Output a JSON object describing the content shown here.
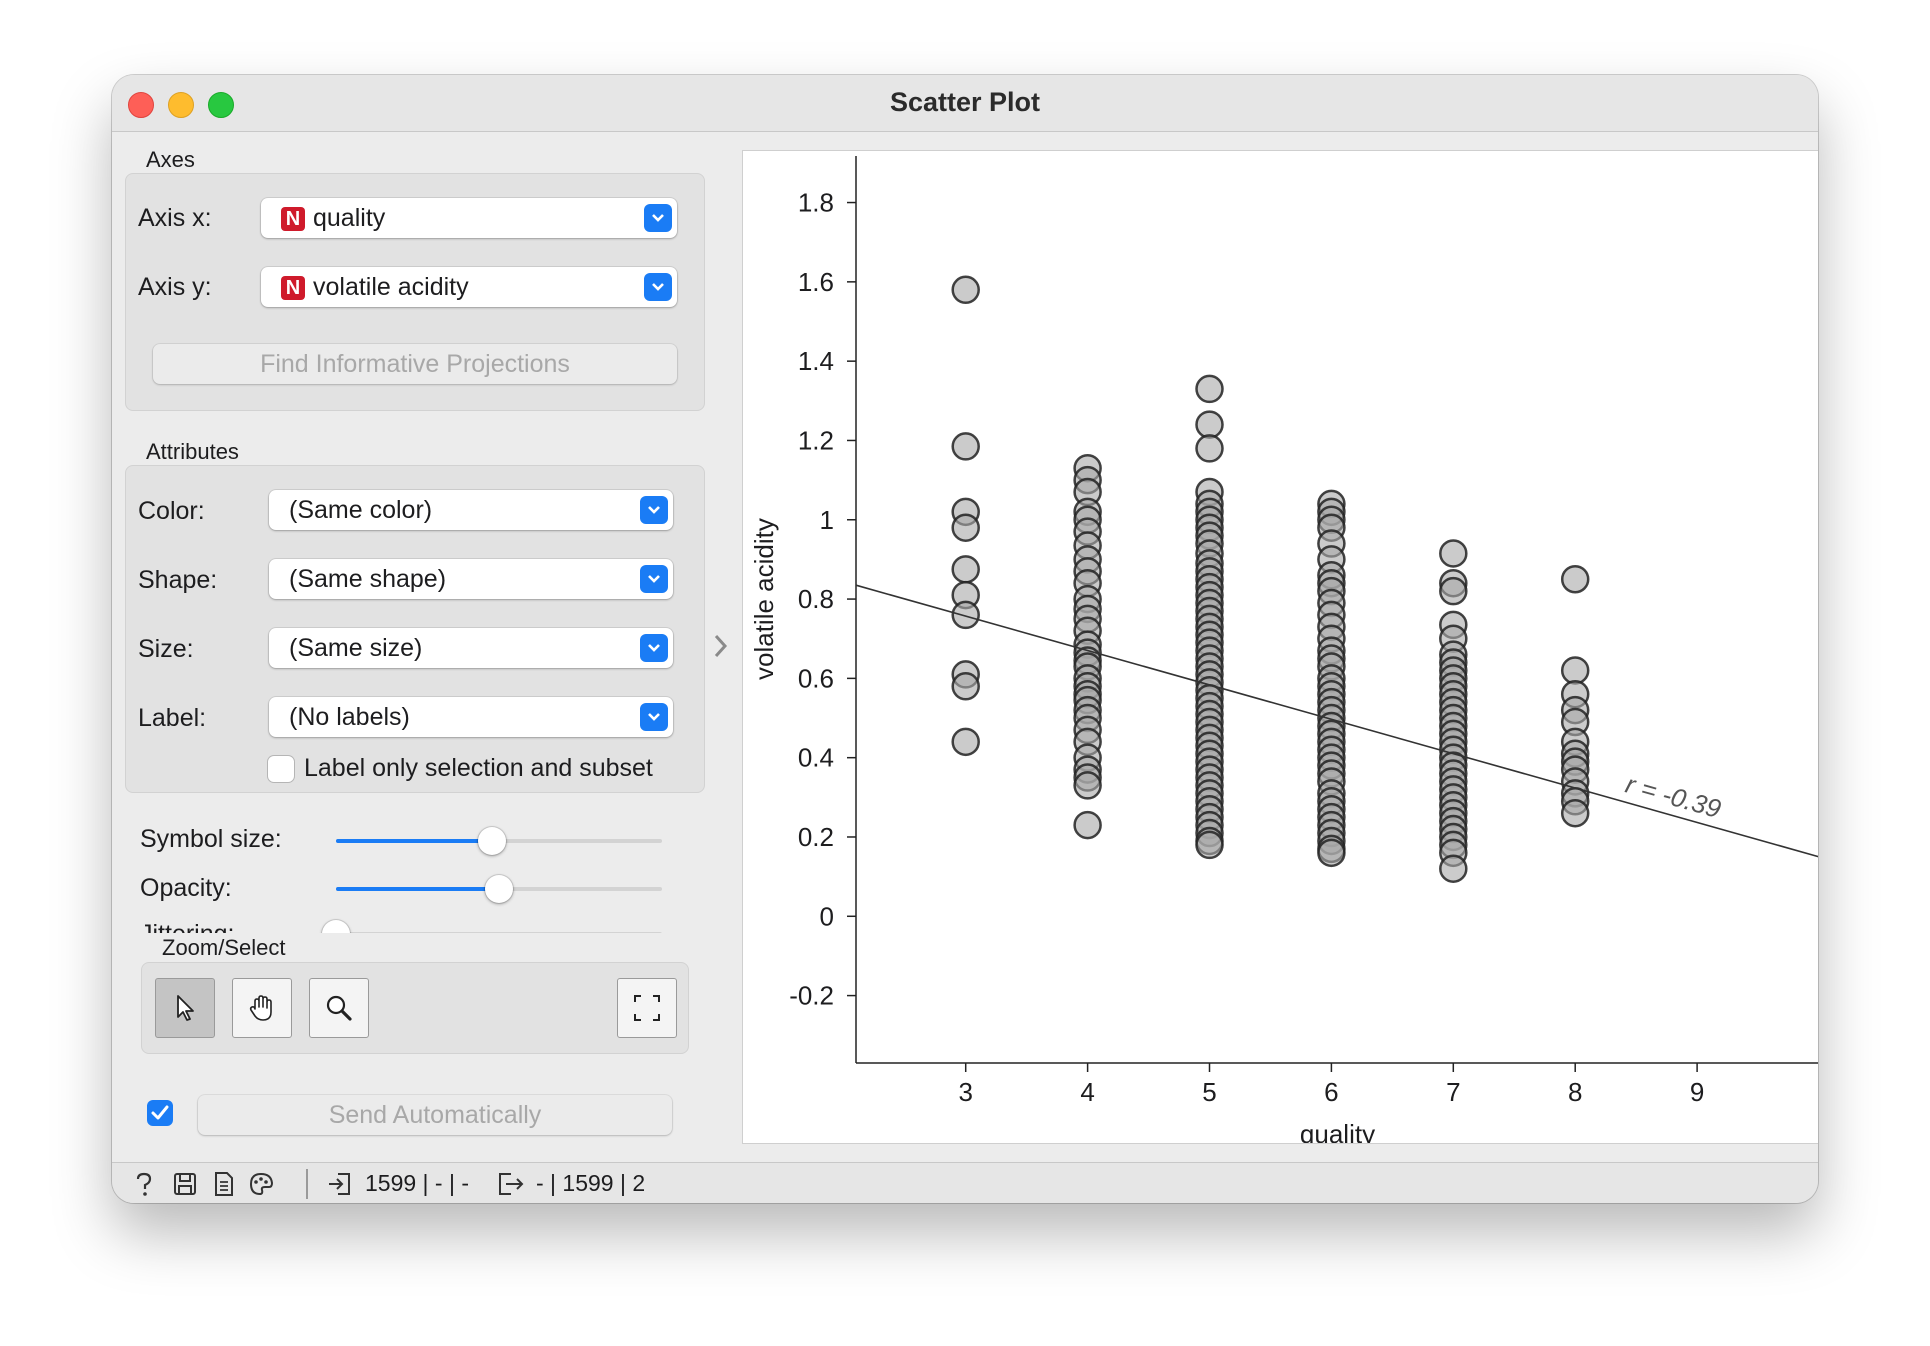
{
  "window": {
    "title": "Scatter Plot"
  },
  "axes_box": {
    "title": "Axes",
    "axis_x_label": "Axis x:",
    "axis_x_value": "quality",
    "axis_y_label": "Axis y:",
    "axis_y_value": "volatile acidity",
    "var_badge": "N",
    "find_projections": "Find Informative Projections"
  },
  "attributes_box": {
    "title": "Attributes",
    "color_label": "Color:",
    "color_value": "(Same color)",
    "shape_label": "Shape:",
    "shape_value": "(Same shape)",
    "size_label": "Size:",
    "size_value": "(Same size)",
    "label_label": "Label:",
    "label_value": "(No labels)",
    "label_only_selection": "Label only selection and subset",
    "label_only_selection_checked": false
  },
  "sliders": {
    "symbol_size_label": "Symbol size:",
    "symbol_size_level": 0.48,
    "opacity_label": "Opacity:",
    "opacity_level": 0.5,
    "jittering_label": "Jittering:",
    "jittering_level": 0.0
  },
  "zoom_select": {
    "title": "Zoom/Select",
    "active_tool": "select"
  },
  "send": {
    "label": "Send Automatically",
    "checked": true
  },
  "status": {
    "input_summary": "1599 | - | -",
    "output_summary": "- | 1599 | 2"
  },
  "chart_data": {
    "type": "scatter",
    "xlabel": "quality",
    "ylabel": "volatile acidity",
    "xlim": [
      2.1,
      10.0
    ],
    "ylim": [
      -0.37,
      1.93
    ],
    "xticks": [
      3,
      4,
      5,
      6,
      7,
      8,
      9
    ],
    "yticks": [
      -0.2,
      0,
      0.2,
      0.4,
      0.6,
      0.8,
      1,
      1.2,
      1.4,
      1.6,
      1.8
    ],
    "ytick_labels": [
      "-0.2",
      "0",
      "0.2",
      "0.4",
      "0.6",
      "0.8",
      "1",
      "1.2",
      "1.4",
      "1.6",
      "1.8"
    ],
    "grid": false,
    "regression": {
      "label": "r = -0.39",
      "x": [
        2.1,
        10.0
      ],
      "y": [
        0.835,
        0.15
      ]
    },
    "points": [
      {
        "x": 3,
        "y": [
          1.58,
          1.185,
          1.02,
          0.98,
          0.875,
          0.81,
          0.76,
          0.61,
          0.58,
          0.44
        ]
      },
      {
        "x": 4,
        "y": [
          1.13,
          1.1,
          1.07,
          1.02,
          1.0,
          0.97,
          0.935,
          0.9,
          0.87,
          0.84,
          0.8,
          0.775,
          0.75,
          0.72,
          0.685,
          0.665,
          0.645,
          0.63,
          0.6,
          0.58,
          0.56,
          0.545,
          0.52,
          0.5,
          0.47,
          0.44,
          0.4,
          0.37,
          0.35,
          0.33,
          0.23
        ]
      },
      {
        "x": 5,
        "y": [
          1.33,
          1.24,
          1.18,
          1.07,
          1.04,
          1.02,
          1.0,
          0.98,
          0.96,
          0.94,
          0.915,
          0.89,
          0.87,
          0.85,
          0.83,
          0.81,
          0.79,
          0.77,
          0.75,
          0.73,
          0.71,
          0.69,
          0.67,
          0.65,
          0.63,
          0.61,
          0.59,
          0.57,
          0.55,
          0.53,
          0.51,
          0.49,
          0.47,
          0.45,
          0.43,
          0.41,
          0.39,
          0.37,
          0.35,
          0.33,
          0.31,
          0.29,
          0.27,
          0.25,
          0.23,
          0.21,
          0.19,
          0.18
        ]
      },
      {
        "x": 6,
        "y": [
          1.04,
          1.02,
          1.0,
          0.98,
          0.94,
          0.9,
          0.86,
          0.84,
          0.82,
          0.79,
          0.76,
          0.73,
          0.7,
          0.67,
          0.65,
          0.63,
          0.6,
          0.58,
          0.56,
          0.54,
          0.52,
          0.5,
          0.48,
          0.46,
          0.44,
          0.42,
          0.4,
          0.38,
          0.36,
          0.34,
          0.31,
          0.29,
          0.27,
          0.25,
          0.23,
          0.21,
          0.19,
          0.17,
          0.16
        ]
      },
      {
        "x": 7,
        "y": [
          0.915,
          0.84,
          0.82,
          0.735,
          0.7,
          0.66,
          0.64,
          0.62,
          0.6,
          0.58,
          0.56,
          0.54,
          0.52,
          0.5,
          0.48,
          0.46,
          0.44,
          0.42,
          0.4,
          0.38,
          0.36,
          0.34,
          0.32,
          0.3,
          0.28,
          0.26,
          0.24,
          0.22,
          0.2,
          0.18,
          0.16,
          0.12
        ]
      },
      {
        "x": 8,
        "y": [
          0.85,
          0.62,
          0.56,
          0.52,
          0.49,
          0.44,
          0.41,
          0.39,
          0.37,
          0.34,
          0.31,
          0.29,
          0.26
        ]
      }
    ]
  }
}
